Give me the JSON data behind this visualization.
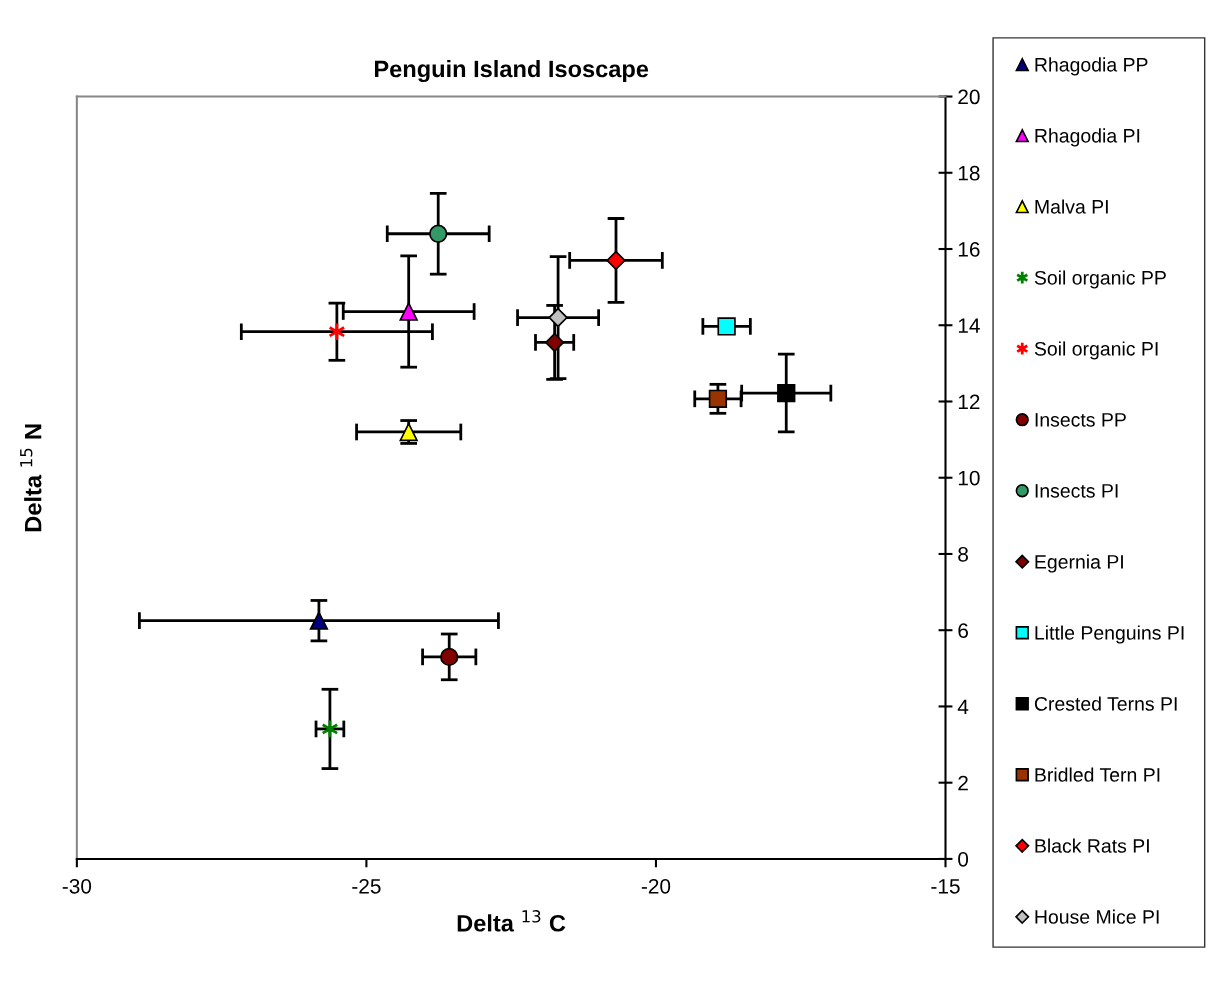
{
  "chart_data": {
    "type": "scatter",
    "title": "Penguin Island Isoscape",
    "xlabel": "Delta $^{13}$ C",
    "ylabel": "Delta $^{15}$ N",
    "xlim": [
      -30,
      -15
    ],
    "xticks": [
      -30,
      -25,
      -20,
      -15
    ],
    "ylim": [
      0,
      20
    ],
    "yticks": [
      0,
      2,
      4,
      6,
      8,
      10,
      12,
      14,
      16,
      18,
      20
    ],
    "grid": false,
    "legend": "right",
    "series": [
      {
        "name": "Rhagodia PP",
        "color": "#000080",
        "marker": "triangle",
        "x": [
          -25.82
        ],
        "values": [
          6.25
        ],
        "xerrors": [
          3.1
        ],
        "errors": [
          0.53
        ]
      },
      {
        "name": "Rhagodia PI",
        "color": "#ff00ff",
        "marker": "triangle",
        "x": [
          -24.27
        ],
        "values": [
          14.36
        ],
        "xerrors": [
          1.13
        ],
        "errors": [
          1.46
        ]
      },
      {
        "name": "Malva PI",
        "color": "#ffff00",
        "marker": "triangle",
        "x": [
          -24.27
        ],
        "values": [
          11.2
        ],
        "xerrors": [
          0.9
        ],
        "errors": [
          0.3
        ]
      },
      {
        "name": "Soil organic PP",
        "color": "#008000",
        "marker": "cross",
        "x": [
          -25.63
        ],
        "values": [
          3.41
        ],
        "xerrors": [
          0.24
        ],
        "errors": [
          1.04
        ]
      },
      {
        "name": "Soil organic PI",
        "color": "#ff0000",
        "marker": "cross",
        "x": [
          -25.51
        ],
        "values": [
          13.83
        ],
        "xerrors": [
          1.65
        ],
        "errors": [
          0.75
        ]
      },
      {
        "name": "Insects PP",
        "color": "#800000",
        "marker": "circle",
        "x": [
          -23.57
        ],
        "values": [
          5.3
        ],
        "xerrors": [
          0.46
        ],
        "errors": [
          0.6
        ]
      },
      {
        "name": "Insects PI",
        "color": "#339966",
        "marker": "circle",
        "x": [
          -23.76
        ],
        "values": [
          16.4
        ],
        "xerrors": [
          0.88
        ],
        "errors": [
          1.06
        ]
      },
      {
        "name": "Egernia PI",
        "color": "#800000",
        "marker": "diamond",
        "x": [
          -21.75
        ],
        "values": [
          13.55
        ],
        "xerrors": [
          0.33
        ],
        "errors": [
          0.97
        ]
      },
      {
        "name": "Little Penguins PI",
        "color": "#00ffff",
        "marker": "square",
        "x": [
          -18.78
        ],
        "values": [
          13.97
        ],
        "xerrors": [
          0.41
        ],
        "errors": [
          null
        ]
      },
      {
        "name": "Crested Terns PI",
        "color": "#000000",
        "marker": "square",
        "x": [
          -17.75
        ],
        "values": [
          12.22
        ],
        "xerrors": [
          0.77
        ],
        "errors": [
          1.02
        ]
      },
      {
        "name": "Bridled Tern PI",
        "color": "#993300",
        "marker": "square",
        "x": [
          -18.93
        ],
        "values": [
          12.07
        ],
        "xerrors": [
          0.4
        ],
        "errors": [
          0.38
        ]
      },
      {
        "name": "Black Rats PI",
        "color": "#ff0000",
        "marker": "diamond",
        "x": [
          -20.69
        ],
        "values": [
          15.7
        ],
        "xerrors": [
          0.8
        ],
        "errors": [
          1.1
        ]
      },
      {
        "name": "House Mice PI",
        "color": "#c0c0c0",
        "marker": "diamond",
        "x": [
          -21.69
        ],
        "values": [
          14.2
        ],
        "xerrors": [
          0.7
        ],
        "errors": [
          1.6
        ]
      }
    ]
  }
}
